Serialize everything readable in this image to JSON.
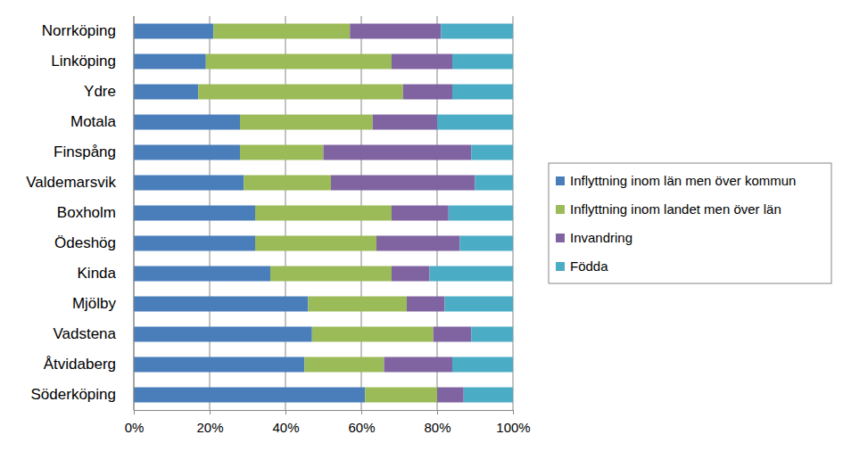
{
  "chart_data": {
    "type": "bar",
    "orientation": "horizontal",
    "stacked": true,
    "grid": true,
    "legend": "right",
    "categories": [
      "Norrköping",
      "Linköping",
      "Ydre",
      "Motala",
      "Finspång",
      "Valdemarsvik",
      "Boxholm",
      "Ödeshög",
      "Kinda",
      "Mjölby",
      "Vadstena",
      "Åtvidaberg",
      "Söderköping"
    ],
    "series": [
      {
        "name": "Inflyttning inom län men över kommun",
        "color": "#4a7ebb",
        "values": [
          21,
          19,
          17,
          28,
          28,
          29,
          32,
          32,
          36,
          46,
          47,
          45,
          61
        ]
      },
      {
        "name": "Inflyttning inom landet men över län",
        "color": "#9bbb59",
        "values": [
          36,
          49,
          54,
          35,
          22,
          23,
          36,
          32,
          32,
          26,
          32,
          21,
          19
        ]
      },
      {
        "name": "Invandring",
        "color": "#8064a2",
        "values": [
          24,
          16,
          13,
          17,
          39,
          38,
          15,
          22,
          10,
          10,
          10,
          18,
          7
        ]
      },
      {
        "name": "Födda",
        "color": "#4bacc6",
        "values": [
          19,
          16,
          16,
          20,
          11,
          10,
          17,
          14,
          22,
          18,
          11,
          16,
          13
        ]
      }
    ],
    "xlim": [
      0,
      100
    ],
    "xticks": [
      {
        "value": 0,
        "label": "0%"
      },
      {
        "value": 20,
        "label": "20%"
      },
      {
        "value": 40,
        "label": "40%"
      },
      {
        "value": 60,
        "label": "60%"
      },
      {
        "value": 80,
        "label": "80%"
      },
      {
        "value": 100,
        "label": "100%"
      }
    ]
  }
}
